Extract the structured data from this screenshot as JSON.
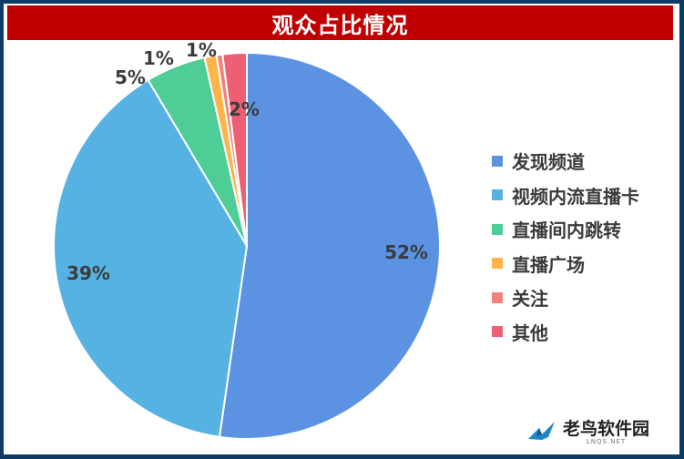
{
  "chart_data": {
    "type": "pie",
    "title": "观众占比情况",
    "start_angle_deg": 0,
    "direction": "clockwise",
    "slices": [
      {
        "label": "发现频道",
        "value": 52,
        "display": "52%",
        "color": "#5b93e2"
      },
      {
        "label": "视频内流直播卡",
        "value": 39,
        "display": "39%",
        "color": "#55b2e3"
      },
      {
        "label": "直播间内跳转",
        "value": 5,
        "display": "5%",
        "color": "#4fcd96"
      },
      {
        "label": "直播广场",
        "value": 1,
        "display": "1%",
        "color": "#ffb34a"
      },
      {
        "label": "关注",
        "value": 0.5,
        "display": "",
        "color": "#f2837a"
      },
      {
        "label": "其他",
        "value": 2,
        "display": "2%",
        "color": "#ec5f74"
      }
    ],
    "legend_position": "right"
  },
  "colors": {
    "background": "#0e3a66",
    "title_bar": "#c00000"
  },
  "watermark": {
    "text": "老鸟软件园",
    "sub": "LNQS.NET"
  }
}
